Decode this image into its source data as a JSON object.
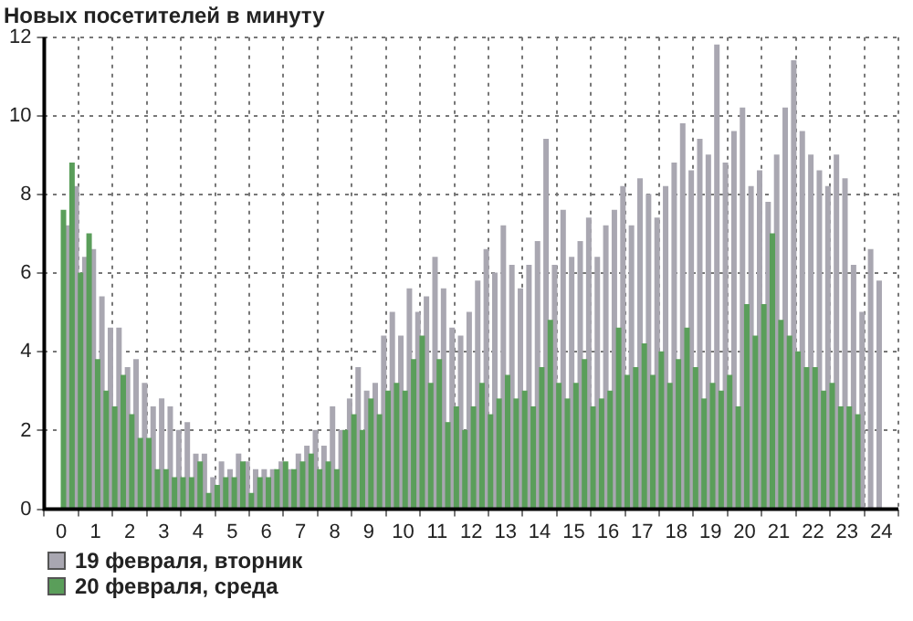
{
  "chart_data": {
    "type": "bar",
    "title": "Новых посетителей в минуту",
    "x": [
      0.125,
      0.375,
      0.625,
      0.875,
      1.125,
      1.375,
      1.625,
      1.875,
      2.125,
      2.375,
      2.625,
      2.875,
      3.125,
      3.375,
      3.625,
      3.875,
      4.125,
      4.375,
      4.625,
      4.875,
      5.125,
      5.375,
      5.625,
      5.875,
      6.125,
      6.375,
      6.625,
      6.875,
      7.125,
      7.375,
      7.625,
      7.875,
      8.125,
      8.375,
      8.625,
      8.875,
      9.125,
      9.375,
      9.625,
      9.875,
      10.125,
      10.375,
      10.625,
      10.875,
      11.125,
      11.375,
      11.625,
      11.875,
      12.125,
      12.375,
      12.625,
      12.875,
      13.125,
      13.375,
      13.625,
      13.875,
      14.125,
      14.375,
      14.625,
      14.875,
      15.125,
      15.375,
      15.625,
      15.875,
      16.125,
      16.375,
      16.625,
      16.875,
      17.125,
      17.375,
      17.625,
      17.875,
      18.125,
      18.375,
      18.625,
      18.875,
      19.125,
      19.375,
      19.625,
      19.875,
      20.125,
      20.375,
      20.625,
      20.875,
      21.125,
      21.375,
      21.625,
      21.875,
      22.125,
      22.375,
      22.625,
      22.875,
      23.125,
      23.375,
      23.625,
      23.875
    ],
    "series": [
      {
        "name": "19 февраля, вторник",
        "color": "#a9a7b1",
        "values": [
          7.2,
          8.2,
          6.4,
          6.6,
          5.4,
          4.6,
          4.6,
          3.6,
          3.8,
          3.2,
          2.6,
          2.8,
          2.6,
          2.0,
          2.2,
          1.4,
          1.4,
          0.8,
          1.2,
          1.0,
          1.4,
          1.2,
          1.0,
          1.0,
          1.0,
          1.2,
          1.0,
          1.4,
          1.6,
          2.0,
          1.6,
          2.6,
          2.0,
          2.8,
          3.6,
          3.0,
          3.2,
          4.4,
          5.0,
          4.4,
          5.6,
          5.0,
          5.4,
          6.4,
          5.6,
          4.6,
          4.4,
          5.0,
          5.8,
          6.6,
          6.0,
          7.2,
          6.2,
          5.6,
          6.2,
          6.8,
          9.4,
          6.2,
          7.6,
          6.4,
          6.8,
          7.4,
          6.4,
          7.2,
          7.6,
          8.2,
          7.2,
          8.4,
          8.0,
          7.4,
          8.2,
          8.8,
          9.8,
          8.6,
          9.4,
          9.0,
          11.8,
          8.8,
          9.6,
          10.2,
          8.2,
          8.6,
          7.8,
          9.0,
          10.2,
          11.4,
          9.6,
          9.0,
          8.6,
          8.2,
          9.0,
          8.4,
          6.2,
          5.0,
          6.6,
          5.8
        ]
      },
      {
        "name": "20 февраля, среда",
        "color": "#5a9e5a",
        "values": [
          7.6,
          8.8,
          6.0,
          7.0,
          3.8,
          3.0,
          2.6,
          3.4,
          2.4,
          1.8,
          1.8,
          1.0,
          1.0,
          0.8,
          0.8,
          0.8,
          1.2,
          0.4,
          0.6,
          0.8,
          0.8,
          1.2,
          0.4,
          0.8,
          0.8,
          1.0,
          1.2,
          1.0,
          1.2,
          1.4,
          1.0,
          1.2,
          1.0,
          2.0,
          2.4,
          2.0,
          2.8,
          2.4,
          3.0,
          3.2,
          3.0,
          3.8,
          4.4,
          3.2,
          3.8,
          2.2,
          2.6,
          2.0,
          2.6,
          3.2,
          2.4,
          2.8,
          3.4,
          2.8,
          3.0,
          2.6,
          3.6,
          4.8,
          3.2,
          2.8,
          3.2,
          3.8,
          2.6,
          2.8,
          3.0,
          4.6,
          3.4,
          3.6,
          4.2,
          3.4,
          4.0,
          3.2,
          3.8,
          4.6,
          3.6,
          2.8,
          3.2,
          3.0,
          3.4,
          2.6,
          5.2,
          4.4,
          5.2,
          7.0,
          4.8,
          4.4,
          4.0,
          3.6,
          3.6,
          3.0,
          3.2,
          2.6,
          2.6,
          2.4,
          null,
          null
        ]
      }
    ],
    "xlim": [
      0,
      24
    ],
    "xticks": [
      0,
      1,
      2,
      3,
      4,
      5,
      6,
      7,
      8,
      9,
      10,
      11,
      12,
      13,
      14,
      15,
      16,
      17,
      18,
      19,
      20,
      21,
      22,
      23,
      24
    ],
    "ylim": [
      0,
      12
    ],
    "yticks": [
      0,
      2,
      4,
      6,
      8,
      10,
      12
    ],
    "grid": true,
    "legend": "bottom left"
  }
}
